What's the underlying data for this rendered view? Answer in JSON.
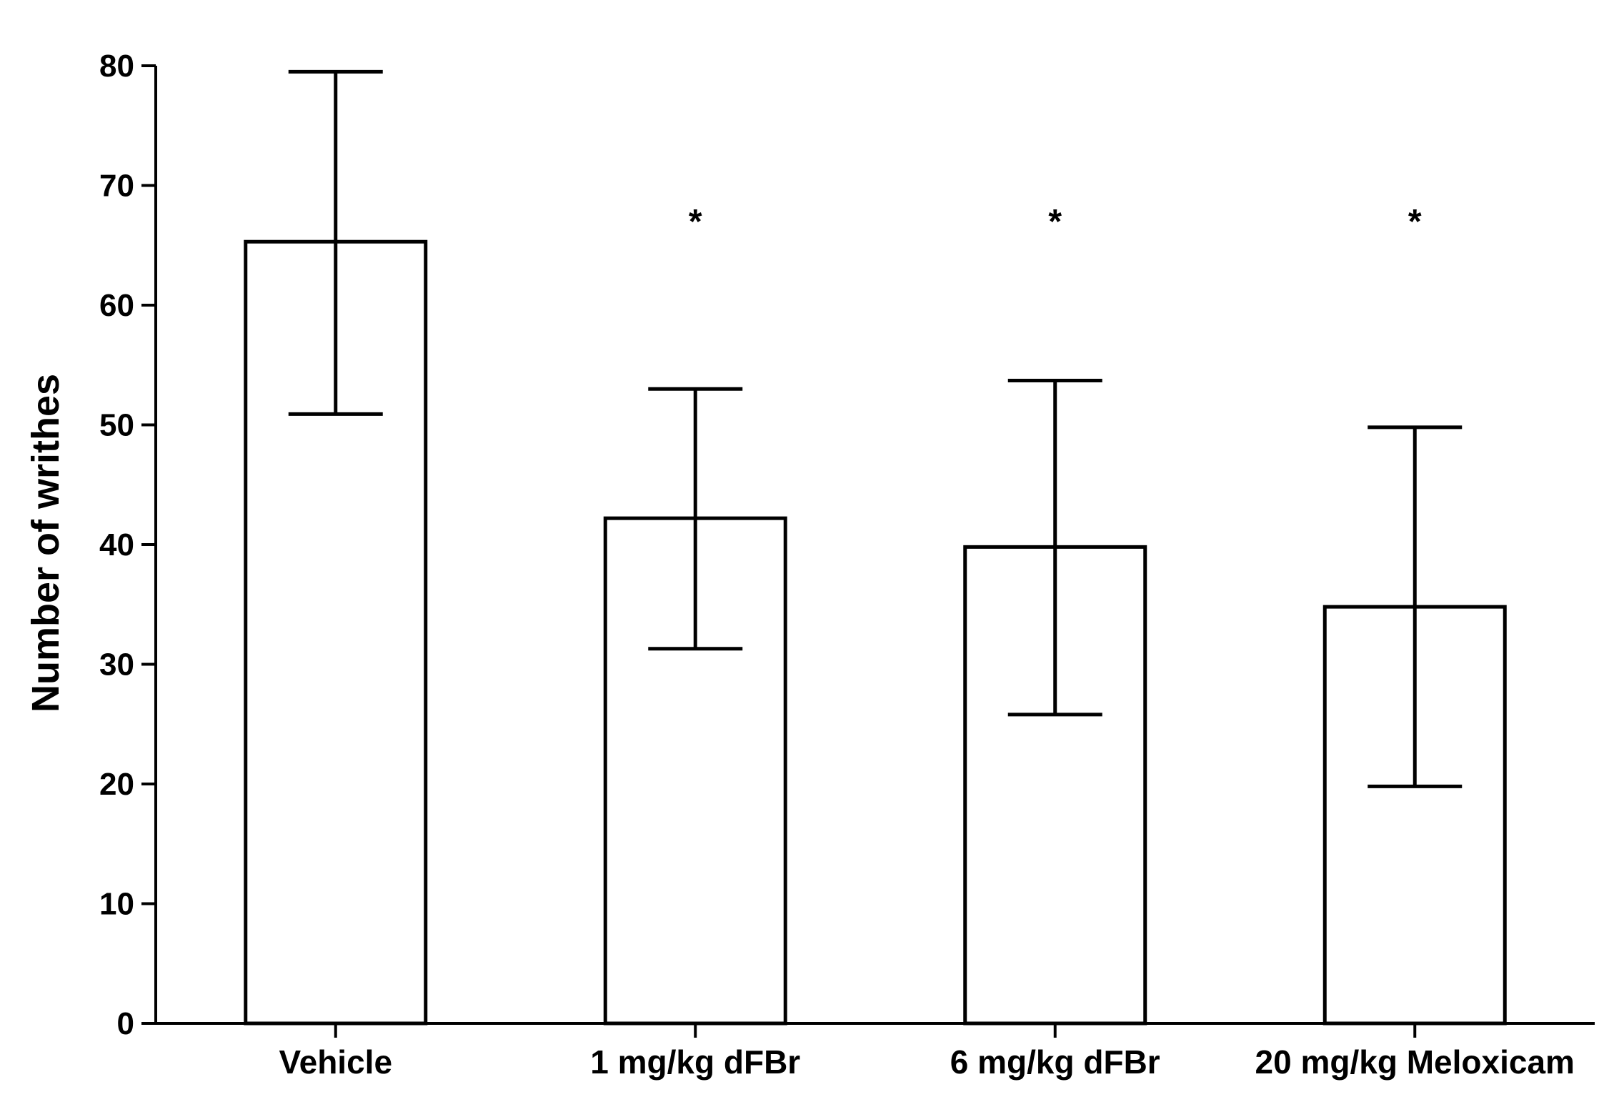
{
  "chart_data": {
    "type": "bar",
    "title": "",
    "xlabel": "",
    "ylabel": "Number of writhes",
    "ylim": [
      0,
      80
    ],
    "yticks": [
      0,
      10,
      20,
      30,
      40,
      50,
      60,
      70,
      80
    ],
    "grid": false,
    "categories": [
      "Vehicle",
      "1 mg/kg dFBr",
      "6 mg/kg dFBr",
      "20 mg/kg Meloxicam"
    ],
    "values": [
      65.3,
      42.2,
      39.8,
      34.8
    ],
    "error_low": [
      50.9,
      31.3,
      25.8,
      19.8
    ],
    "error_high": [
      79.5,
      53.0,
      53.7,
      49.8
    ],
    "significance": [
      "",
      "*",
      "*",
      "*"
    ],
    "colors": {
      "bar_fill": "#ffffff",
      "stroke": "#000000"
    }
  }
}
